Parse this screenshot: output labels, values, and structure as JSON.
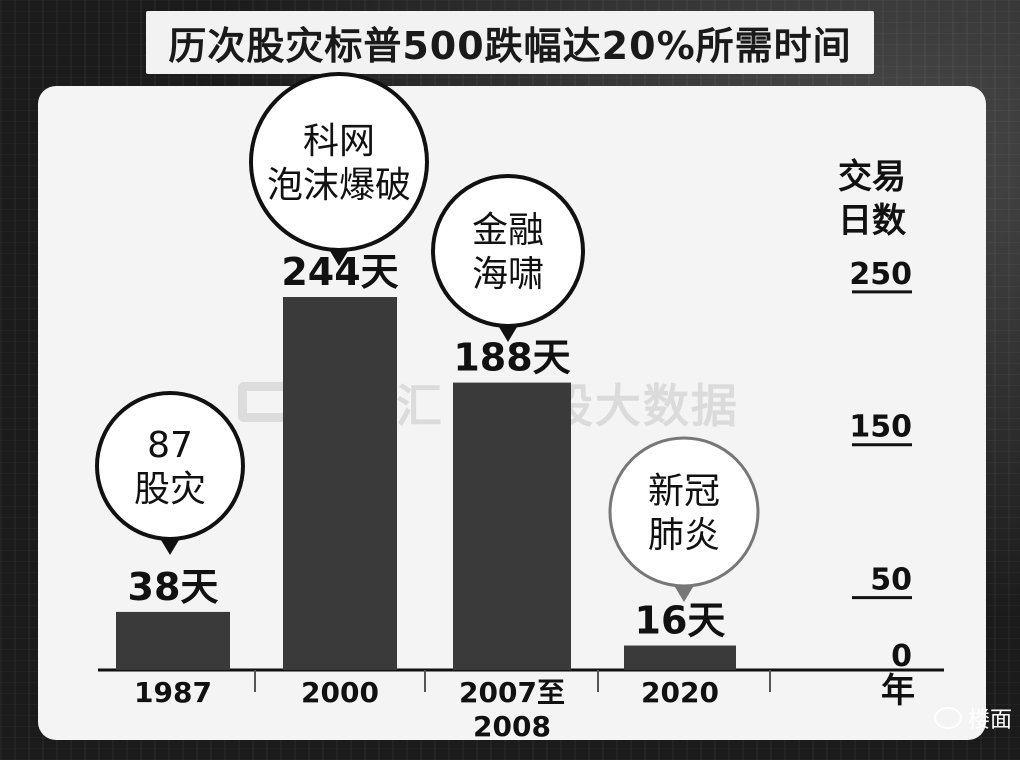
{
  "title": "历次股灾标普500跌幅达20%所需时间",
  "watermark": "格隆汇 | 勾股大数据",
  "wechat_tag": "楼面",
  "chart_data": {
    "type": "bar",
    "title": "历次股灾标普500跌幅达20%所需时间",
    "categories": [
      [
        "1987"
      ],
      [
        "2000"
      ],
      [
        "2007至",
        "2008"
      ],
      [
        "2020"
      ]
    ],
    "values": [
      38,
      244,
      188,
      16
    ],
    "value_labels": [
      "38天",
      "244天",
      "188天",
      "16天"
    ],
    "annotations": [
      [
        "87",
        "股灾"
      ],
      [
        "科网",
        "泡沫爆破"
      ],
      [
        "金融",
        "海啸"
      ],
      [
        "新冠",
        "肺炎"
      ]
    ],
    "ylabel": [
      "交易",
      "日数"
    ],
    "xlabel": "年",
    "yticks": [
      0,
      50,
      150,
      250
    ],
    "ylim": [
      0,
      250
    ],
    "grid": false,
    "axis_position": "right",
    "bar_color": "#3a3a3a"
  }
}
